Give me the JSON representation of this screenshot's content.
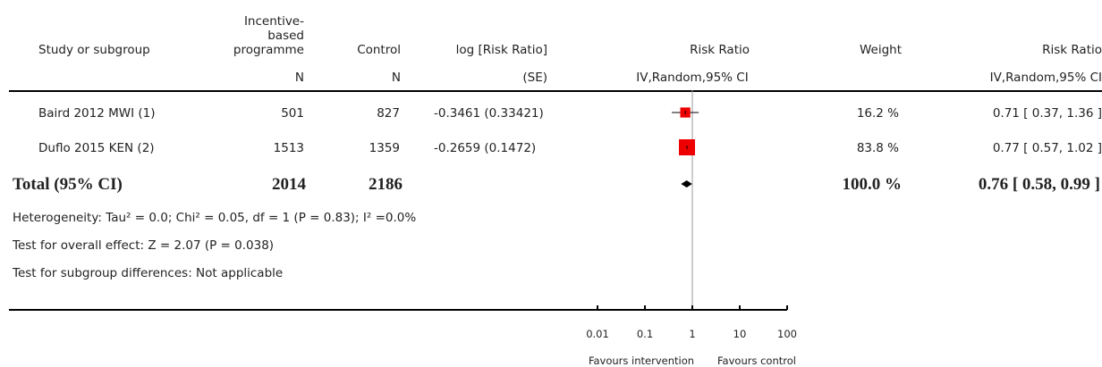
{
  "header": {
    "study": "Study or subgroup",
    "intervention_group_lines": [
      "Incentive-",
      "based",
      "programme"
    ],
    "intervention_n": "N",
    "control": "Control",
    "control_n": "N",
    "log_rr": "log [Risk Ratio]",
    "log_rr_se": "(SE)",
    "rr_plot": "Risk Ratio",
    "rr_plot_method": "IV,Random,95% CI",
    "weight": "Weight",
    "rr_text": "Risk Ratio",
    "rr_text_method": "IV,Random,95% CI"
  },
  "studies": [
    {
      "name": "Baird 2012 MWI (1)",
      "n_int": "501",
      "n_ctl": "827",
      "logrr_se": "-0.3461 (0.33421)",
      "weight": "16.2 %",
      "ci_text": "0.71 [ 0.37, 1.36 ]"
    },
    {
      "name": "Duflo 2015 KEN (2)",
      "n_int": "1513",
      "n_ctl": "1359",
      "logrr_se": "-0.2659 (0.1472)",
      "weight": "83.8 %",
      "ci_text": "0.77 [ 0.57, 1.02 ]"
    }
  ],
  "total": {
    "label": "Total (95% CI)",
    "n_int": "2014",
    "n_ctl": "2186",
    "weight": "100.0 %",
    "ci_text": "0.76 [ 0.58, 0.99 ]"
  },
  "footnotes": {
    "heterogeneity": "Heterogeneity: Tau² = 0.0; Chi² = 0.05, df = 1 (P = 0.83); I² =0.0%",
    "overall": "Test for overall effect: Z = 2.07 (P = 0.038)",
    "subgroup": "Test for subgroup differences: Not applicable"
  },
  "axis": {
    "ticks": [
      {
        "value": 0.01,
        "label": "0.01"
      },
      {
        "value": 0.1,
        "label": "0.1"
      },
      {
        "value": 1,
        "label": "1"
      },
      {
        "value": 10,
        "label": "10"
      },
      {
        "value": 100,
        "label": "100"
      }
    ],
    "favours_left": "Favours intervention",
    "favours_right": "Favours control"
  },
  "chart_data": {
    "type": "forest",
    "scale": "log",
    "xlim": [
      0.01,
      100
    ],
    "reference_line": 1,
    "studies": [
      {
        "name": "Baird 2012 MWI (1)",
        "rr": 0.71,
        "ci": [
          0.37,
          1.36
        ],
        "weight": 16.2
      },
      {
        "name": "Duflo 2015 KEN (2)",
        "rr": 0.77,
        "ci": [
          0.57,
          1.02
        ],
        "weight": 83.8
      }
    ],
    "pooled": {
      "rr": 0.76,
      "ci": [
        0.58,
        0.99
      ]
    },
    "colors": {
      "study_marker": "#ee0000",
      "pooled_marker": "#000000",
      "lines": "#000000",
      "reference": "#999999"
    }
  }
}
